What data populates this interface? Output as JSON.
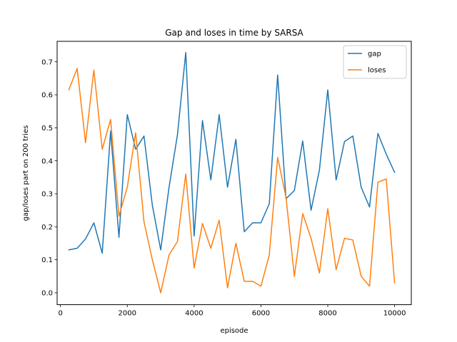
{
  "chart_data": {
    "type": "line",
    "title": "Gap and loses in time by SARSA",
    "xlabel": "episode",
    "ylabel": "gap/loses part on 200 tries",
    "xlim": [
      -100,
      10500
    ],
    "ylim": [
      -0.036,
      0.762
    ],
    "xticks": [
      0,
      2000,
      4000,
      6000,
      8000,
      10000
    ],
    "yticks": [
      0.0,
      0.1,
      0.2,
      0.3,
      0.4,
      0.5,
      0.6,
      0.7
    ],
    "ytick_labels": [
      "0.0",
      "0.1",
      "0.2",
      "0.3",
      "0.4",
      "0.5",
      "0.6",
      "0.7"
    ],
    "grid": false,
    "legend_position": "top-right",
    "x": [
      250,
      500,
      750,
      1000,
      1250,
      1500,
      1750,
      2000,
      2250,
      2500,
      2750,
      3000,
      3250,
      3500,
      3750,
      4000,
      4250,
      4500,
      4750,
      5000,
      5250,
      5500,
      5750,
      6000,
      6250,
      6500,
      6750,
      7000,
      7250,
      7500,
      7750,
      8000,
      8250,
      8500,
      8750,
      9000,
      9250,
      9500,
      9750,
      10000
    ],
    "series": [
      {
        "name": "gap",
        "color": "#1f77b4",
        "values": [
          0.13,
          0.135,
          0.163,
          0.212,
          0.12,
          0.49,
          0.168,
          0.54,
          0.435,
          0.475,
          0.265,
          0.13,
          0.32,
          0.478,
          0.728,
          0.172,
          0.522,
          0.342,
          0.54,
          0.32,
          0.465,
          0.185,
          0.212,
          0.212,
          0.27,
          0.66,
          0.285,
          0.31,
          0.46,
          0.25,
          0.372,
          0.615,
          0.342,
          0.458,
          0.475,
          0.32,
          0.26,
          0.483,
          0.42,
          0.365
        ]
      },
      {
        "name": "loses",
        "color": "#ff7f0e",
        "values": [
          0.615,
          0.68,
          0.455,
          0.675,
          0.435,
          0.525,
          0.232,
          0.32,
          0.485,
          0.215,
          0.1,
          0.0,
          0.115,
          0.155,
          0.36,
          0.075,
          0.21,
          0.135,
          0.22,
          0.015,
          0.15,
          0.035,
          0.035,
          0.02,
          0.115,
          0.41,
          0.29,
          0.05,
          0.24,
          0.165,
          0.06,
          0.255,
          0.07,
          0.165,
          0.16,
          0.05,
          0.02,
          0.335,
          0.345,
          0.03
        ]
      }
    ]
  }
}
